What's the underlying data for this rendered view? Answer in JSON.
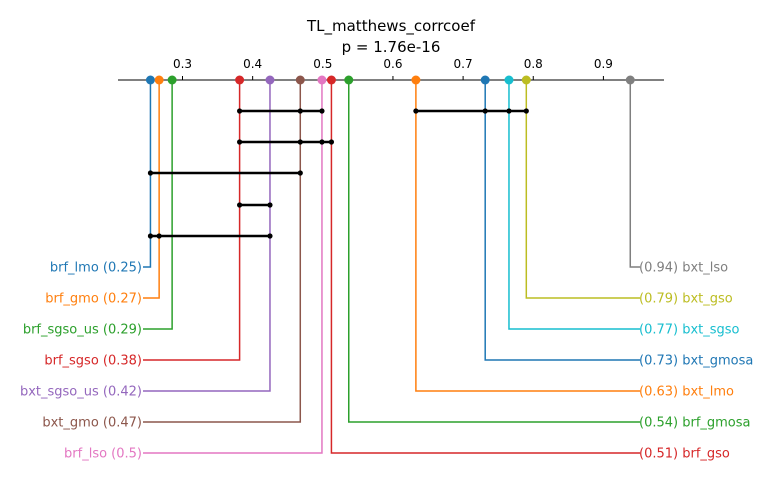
{
  "chart_data": {
    "type": "critical-difference",
    "title": "TL_matthews_corrcoef",
    "subtitle": "p = 1.76e-16",
    "xlim": [
      0.2,
      0.98
    ],
    "ticks": [
      0.3,
      0.4,
      0.5,
      0.6,
      0.7,
      0.8,
      0.9
    ],
    "tick_labels": [
      "0.3",
      "0.4",
      "0.5",
      "0.6",
      "0.7",
      "0.8",
      "0.9"
    ],
    "methods_left": [
      {
        "name": "brf_lmo",
        "value": 0.2543,
        "label": "brf_lmo (0.25)",
        "color": "#1f77b4"
      },
      {
        "name": "brf_gmo",
        "value": 0.2667,
        "label": "brf_gmo (0.27)",
        "color": "#ff7f0e"
      },
      {
        "name": "brf_sgso_us",
        "value": 0.2852,
        "label": "brf_sgso_us (0.29)",
        "color": "#2ca02c"
      },
      {
        "name": "brf_sgso",
        "value": 0.3814,
        "label": "brf_sgso (0.38)",
        "color": "#d62728"
      },
      {
        "name": "bxt_sgso_us",
        "value": 0.4247,
        "label": "bxt_sgso_us (0.42)",
        "color": "#9467bd"
      },
      {
        "name": "bxt_gmo",
        "value": 0.4679,
        "label": "bxt_gmo (0.47)",
        "color": "#8c564b"
      },
      {
        "name": "brf_lso",
        "value": 0.4988,
        "label": "brf_lso (0.5)",
        "color": "#e377c2"
      }
    ],
    "methods_right": [
      {
        "name": "bxt_lso",
        "value": 0.9383,
        "label": "(0.94) bxt_lso",
        "color": "#7f7f7f"
      },
      {
        "name": "bxt_gso",
        "value": 0.7901,
        "label": "(0.79) bxt_gso",
        "color": "#bcbd22"
      },
      {
        "name": "bxt_sgso",
        "value": 0.7654,
        "label": "(0.77) bxt_sgso",
        "color": "#17becf"
      },
      {
        "name": "bxt_gmosa",
        "value": 0.7315,
        "label": "(0.73) bxt_gmosa",
        "color": "#1f77b4"
      },
      {
        "name": "bxt_lmo",
        "value": 0.6327,
        "label": "(0.63) bxt_lmo",
        "color": "#ff7f0e"
      },
      {
        "name": "brf_gmosa",
        "value": 0.537,
        "label": "(0.54) brf_gmosa",
        "color": "#2ca02c"
      },
      {
        "name": "brf_gso",
        "value": 0.5123,
        "label": "(0.51) brf_gso",
        "color": "#d62728"
      }
    ],
    "cliques": [
      {
        "members": [
          "brf_sgso",
          "bxt_gmo",
          "brf_lso"
        ],
        "from": 0.3814,
        "to": 0.4988
      },
      {
        "members": [
          "bxt_lmo",
          "bxt_gmosa",
          "bxt_sgso",
          "bxt_gso"
        ],
        "from": 0.6327,
        "to": 0.7901
      },
      {
        "members": [
          "brf_sgso",
          "bxt_gmo",
          "brf_lso",
          "brf_gso"
        ],
        "from": 0.3814,
        "to": 0.5123
      },
      {
        "members": [
          "brf_lmo",
          "bxt_gmo"
        ],
        "from": 0.2543,
        "to": 0.4679
      },
      {
        "members": [
          "brf_sgso",
          "bxt_sgso_us"
        ],
        "from": 0.3814,
        "to": 0.4247
      },
      {
        "members": [
          "brf_lmo",
          "brf_gmo",
          "bxt_sgso_us"
        ],
        "from": 0.2543,
        "to": 0.4247
      }
    ]
  }
}
